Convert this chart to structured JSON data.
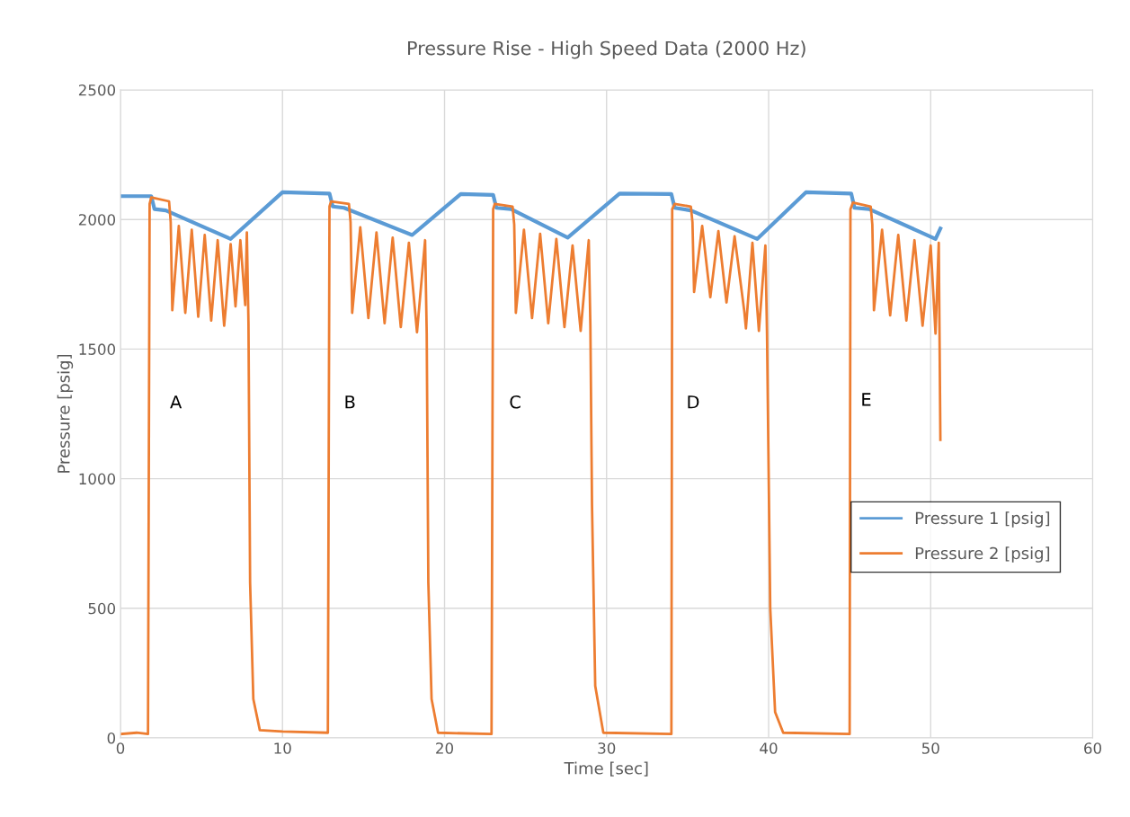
{
  "chart_data": {
    "type": "line",
    "title": "Pressure Rise - High Speed Data (2000 Hz)",
    "xlabel": "Time [sec]",
    "ylabel": "Pressure [psig]",
    "xlim": [
      0,
      60
    ],
    "xticks": [
      0,
      10,
      20,
      30,
      40,
      50,
      60
    ],
    "ylim": [
      0,
      2500
    ],
    "yticks": [
      0,
      500,
      1000,
      1500,
      2000,
      2500
    ],
    "grid": true,
    "legend": "right",
    "marker": "none",
    "line_style": "solid",
    "series": [
      {
        "name": "Pressure 1 [psig]",
        "color": "#5b9bd5",
        "x": [
          0,
          1.9,
          2.1,
          2.8,
          6.8,
          10.0,
          12.9,
          13.1,
          13.8,
          18.0,
          21.0,
          23.0,
          23.2,
          24.1,
          27.6,
          30.8,
          34.0,
          34.2,
          35.2,
          39.3,
          42.3,
          45.1,
          45.3,
          46.2,
          50.3,
          50.6
        ],
        "values": [
          2090,
          2090,
          2040,
          2035,
          1925,
          2105,
          2100,
          2050,
          2045,
          1940,
          2098,
          2095,
          2045,
          2040,
          1930,
          2100,
          2098,
          2045,
          2035,
          1925,
          2105,
          2100,
          2045,
          2040,
          1925,
          1965
        ]
      },
      {
        "name": "Pressure 2 [psig]",
        "color": "#ed7d31",
        "x": [
          0,
          1.0,
          1.7,
          1.8,
          1.9,
          3.0,
          3.1,
          3.2,
          3.6,
          4.0,
          4.4,
          4.8,
          5.2,
          5.6,
          6.0,
          6.4,
          6.5,
          6.8,
          7.1,
          7.4,
          7.7,
          7.8,
          7.9,
          8.0,
          8.2,
          8.6,
          10,
          12.8,
          12.9,
          13.0,
          14.1,
          14.2,
          14.3,
          14.8,
          15.3,
          15.8,
          16.3,
          16.8,
          17.3,
          17.8,
          18.3,
          18.8,
          18.9,
          19.0,
          19.2,
          19.6,
          22.9,
          23.0,
          23.1,
          24.2,
          24.3,
          24.4,
          24.9,
          25.4,
          25.9,
          26.4,
          26.9,
          27.4,
          27.9,
          28.4,
          28.9,
          29.0,
          29.1,
          29.3,
          29.8,
          34.0,
          34.05,
          34.2,
          35.2,
          35.3,
          35.4,
          35.9,
          36.4,
          36.9,
          37.4,
          37.9,
          38.5,
          38.6,
          39.0,
          39.4,
          39.8,
          39.9,
          40.1,
          40.4,
          40.9,
          45.0,
          45.05,
          45.2,
          46.3,
          46.4,
          46.5,
          47.0,
          47.5,
          48.0,
          48.5,
          49.0,
          49.5,
          50.0,
          50.3,
          50.5,
          50.6
        ],
        "values": [
          15,
          20,
          15,
          2060,
          2085,
          2070,
          1990,
          1650,
          1975,
          1640,
          1960,
          1625,
          1940,
          1610,
          1920,
          1590,
          1660,
          1905,
          1665,
          1920,
          1670,
          1950,
          1600,
          600,
          150,
          30,
          25,
          20,
          2050,
          2070,
          2060,
          1990,
          1640,
          1970,
          1620,
          1950,
          1600,
          1930,
          1585,
          1910,
          1565,
          1920,
          1560,
          600,
          150,
          20,
          15,
          2040,
          2060,
          2050,
          1980,
          1640,
          1960,
          1620,
          1945,
          1600,
          1925,
          1585,
          1900,
          1570,
          1920,
          1590,
          900,
          200,
          20,
          15,
          2040,
          2060,
          2050,
          1990,
          1720,
          1975,
          1700,
          1955,
          1680,
          1935,
          1645,
          1580,
          1910,
          1570,
          1900,
          1560,
          500,
          100,
          20,
          15,
          2040,
          2065,
          2050,
          1980,
          1650,
          1960,
          1630,
          1940,
          1610,
          1920,
          1590,
          1900,
          1560,
          1910,
          1150
        ]
      }
    ],
    "annotations": [
      "A",
      "B",
      "C",
      "D",
      "E"
    ]
  }
}
